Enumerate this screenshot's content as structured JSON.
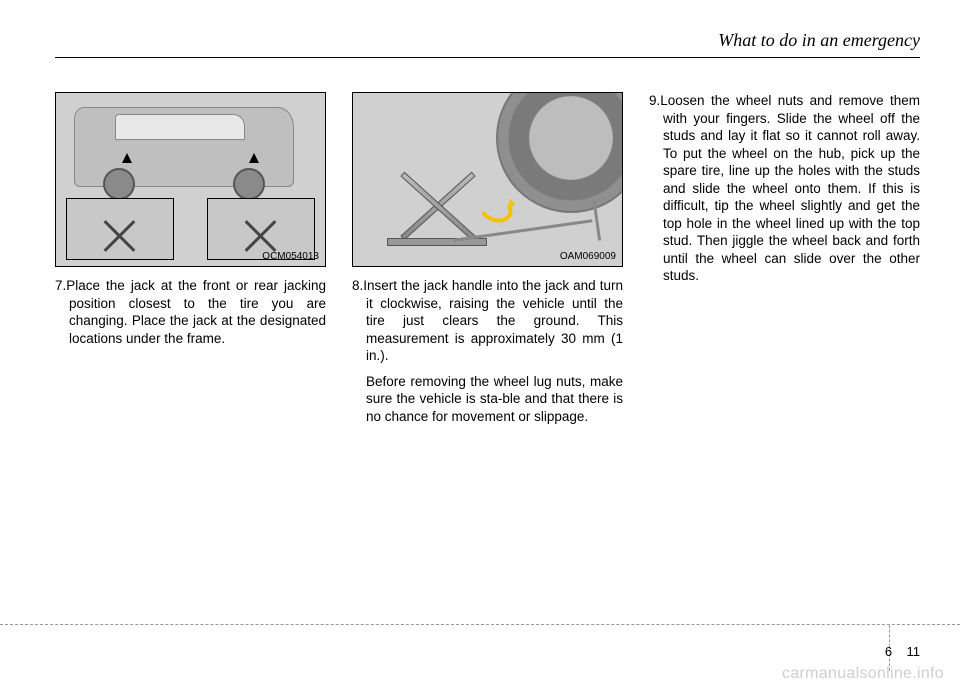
{
  "header": {
    "title": "What to do in an emergency"
  },
  "figures": {
    "fig1": {
      "label": "OCM054013"
    },
    "fig2": {
      "label": "OAM069009"
    }
  },
  "steps": {
    "s7": "7.Place the jack at the front or rear jacking position closest to the tire you are changing. Place the jack at the designated locations under the frame.",
    "s8a": "8.Insert the jack handle into the jack and turn it clockwise, raising the vehicle until the tire just clears the ground. This measurement is approximately 30 mm (1 in.).",
    "s8b": "Before removing the wheel lug nuts, make sure the vehicle is sta-ble and that there is no chance for movement or slippage.",
    "s9": "9.Loosen the wheel nuts and remove them with your fingers. Slide the wheel off the studs and lay it flat so it cannot roll away.  To put the wheel on the hub, pick up the spare tire, line up the holes with the studs and slide the wheel onto them. If this is difficult, tip the wheel slightly and get the top hole in the wheel lined up with the top stud. Then jiggle the wheel back and forth until the wheel can slide over the other studs."
  },
  "footer": {
    "section": "6",
    "page": "11"
  },
  "watermark": "carmanualsonline.info"
}
